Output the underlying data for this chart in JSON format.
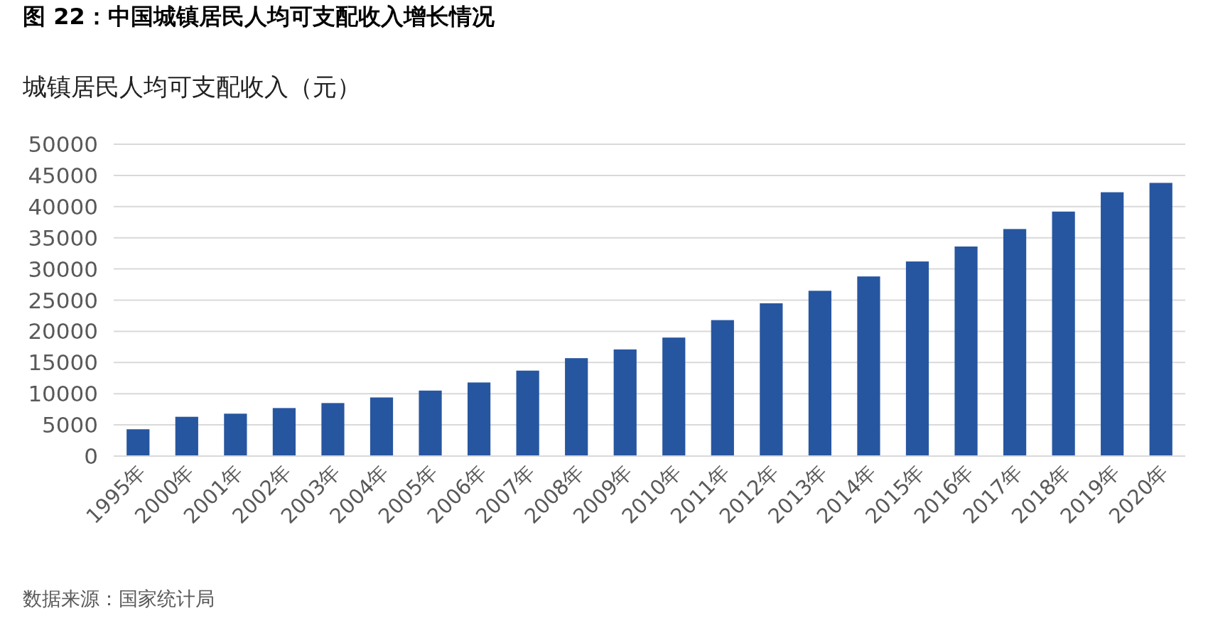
{
  "chart_data": {
    "type": "bar",
    "title": "图 22：中国城镇居民人均可支配收入增长情况",
    "ylabel": "城镇居民人均可支配收入（元）",
    "categories": [
      "1995年",
      "2000年",
      "2001年",
      "2002年",
      "2003年",
      "2004年",
      "2005年",
      "2006年",
      "2007年",
      "2008年",
      "2009年",
      "2010年",
      "2011年",
      "2012年",
      "2013年",
      "2014年",
      "2015年",
      "2016年",
      "2017年",
      "2018年",
      "2019年",
      "2020年"
    ],
    "values": [
      4300,
      6300,
      6800,
      7700,
      8500,
      9400,
      10500,
      11800,
      13700,
      15700,
      17100,
      19000,
      21800,
      24500,
      26500,
      28800,
      31200,
      33600,
      36400,
      39200,
      42300,
      43800
    ],
    "color": "#2756a0",
    "ylim": [
      0,
      50000
    ],
    "yticks": [
      0,
      5000,
      10000,
      15000,
      20000,
      25000,
      30000,
      35000,
      40000,
      45000,
      50000
    ],
    "grid": "y",
    "annotations": [
      "数据来源：国家统计局"
    ]
  }
}
